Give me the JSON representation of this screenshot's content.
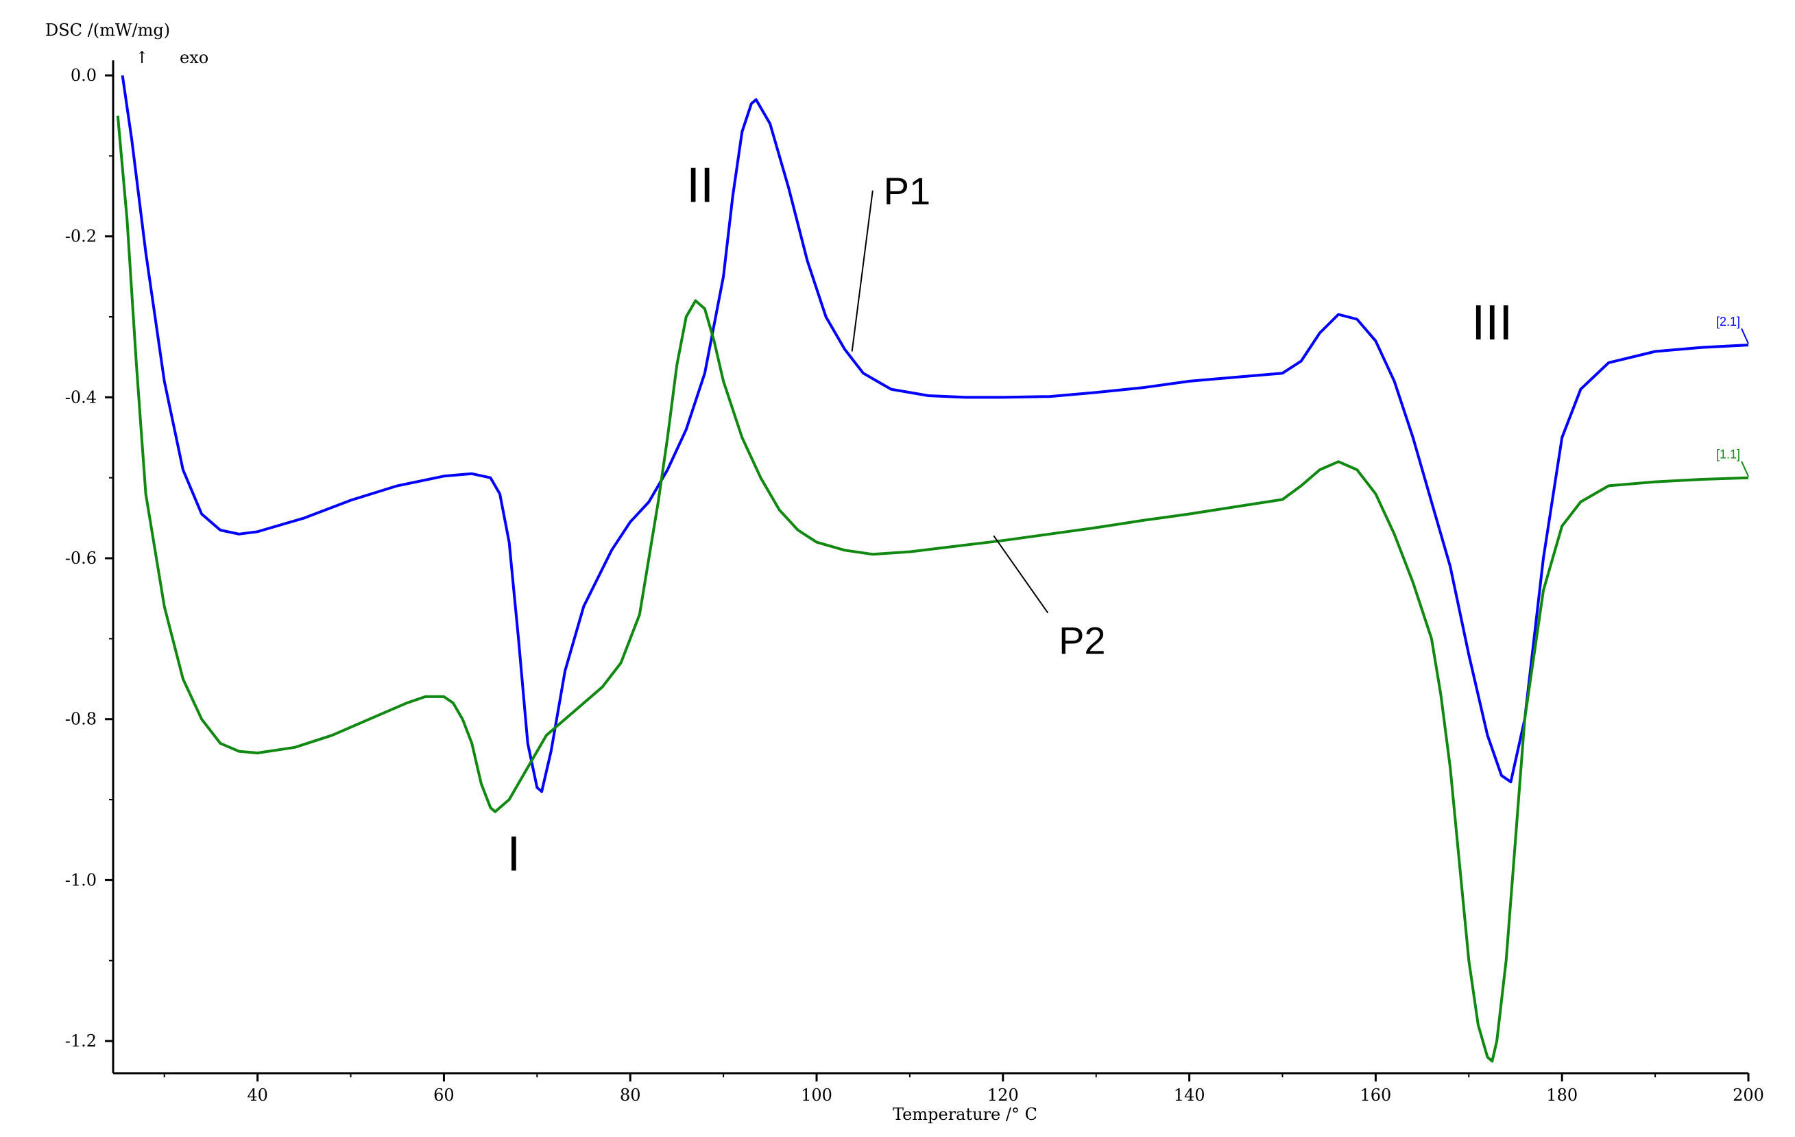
{
  "chart_data": {
    "type": "line",
    "title": "",
    "xlabel": "Temperature /° C",
    "ylabel": "DSC /(mW/mg)",
    "exo_label": "exo",
    "exo_arrow": "↑",
    "xlim": [
      24.5,
      200
    ],
    "ylim": [
      -1.24,
      0.0
    ],
    "x_ticks": [
      40,
      60,
      80,
      100,
      120,
      140,
      160,
      180,
      200
    ],
    "x_tick_labels": [
      "40",
      "60",
      "80",
      "100",
      "120",
      "140",
      "160",
      "180",
      "200"
    ],
    "y_ticks": [
      0.0,
      -0.2,
      -0.4,
      -0.6,
      -0.8,
      -1.0,
      -1.2
    ],
    "y_tick_labels": [
      "0.0",
      "-0.2",
      "-0.4",
      "-0.6",
      "-0.8",
      "-1.0",
      "-1.2"
    ],
    "grid": false,
    "legend": "none",
    "series": [
      {
        "name": "P1",
        "end_tag": "[2.1]",
        "color": "#0000ff",
        "points": [
          [
            25.5,
            0.0
          ],
          [
            26.5,
            -0.08
          ],
          [
            28,
            -0.22
          ],
          [
            30,
            -0.38
          ],
          [
            32,
            -0.49
          ],
          [
            34,
            -0.545
          ],
          [
            36,
            -0.565
          ],
          [
            38,
            -0.57
          ],
          [
            40,
            -0.567
          ],
          [
            45,
            -0.55
          ],
          [
            50,
            -0.528
          ],
          [
            55,
            -0.51
          ],
          [
            60,
            -0.498
          ],
          [
            63,
            -0.495
          ],
          [
            65,
            -0.5
          ],
          [
            66,
            -0.52
          ],
          [
            67,
            -0.58
          ],
          [
            68,
            -0.7
          ],
          [
            69,
            -0.83
          ],
          [
            70,
            -0.885
          ],
          [
            70.5,
            -0.89
          ],
          [
            71.5,
            -0.84
          ],
          [
            73,
            -0.74
          ],
          [
            75,
            -0.66
          ],
          [
            78,
            -0.59
          ],
          [
            80,
            -0.555
          ],
          [
            82,
            -0.53
          ],
          [
            84,
            -0.49
          ],
          [
            86,
            -0.44
          ],
          [
            88,
            -0.37
          ],
          [
            90,
            -0.25
          ],
          [
            91,
            -0.15
          ],
          [
            92,
            -0.07
          ],
          [
            93,
            -0.035
          ],
          [
            93.5,
            -0.03
          ],
          [
            95,
            -0.06
          ],
          [
            97,
            -0.14
          ],
          [
            99,
            -0.23
          ],
          [
            101,
            -0.3
          ],
          [
            103,
            -0.34
          ],
          [
            105,
            -0.37
          ],
          [
            108,
            -0.39
          ],
          [
            112,
            -0.398
          ],
          [
            116,
            -0.4
          ],
          [
            120,
            -0.4
          ],
          [
            125,
            -0.399
          ],
          [
            130,
            -0.394
          ],
          [
            135,
            -0.388
          ],
          [
            140,
            -0.38
          ],
          [
            145,
            -0.375
          ],
          [
            150,
            -0.37
          ],
          [
            152,
            -0.355
          ],
          [
            154,
            -0.32
          ],
          [
            156,
            -0.297
          ],
          [
            158,
            -0.303
          ],
          [
            160,
            -0.33
          ],
          [
            162,
            -0.38
          ],
          [
            164,
            -0.45
          ],
          [
            166,
            -0.53
          ],
          [
            168,
            -0.61
          ],
          [
            170,
            -0.72
          ],
          [
            172,
            -0.82
          ],
          [
            173.5,
            -0.87
          ],
          [
            174.5,
            -0.878
          ],
          [
            176,
            -0.8
          ],
          [
            178,
            -0.6
          ],
          [
            180,
            -0.45
          ],
          [
            182,
            -0.39
          ],
          [
            185,
            -0.357
          ],
          [
            190,
            -0.343
          ],
          [
            195,
            -0.338
          ],
          [
            200,
            -0.335
          ]
        ]
      },
      {
        "name": "P2",
        "end_tag": "[1.1]",
        "color": "#118811",
        "points": [
          [
            25,
            -0.05
          ],
          [
            26,
            -0.18
          ],
          [
            27,
            -0.36
          ],
          [
            28,
            -0.52
          ],
          [
            30,
            -0.66
          ],
          [
            32,
            -0.75
          ],
          [
            34,
            -0.8
          ],
          [
            36,
            -0.83
          ],
          [
            38,
            -0.84
          ],
          [
            40,
            -0.842
          ],
          [
            44,
            -0.835
          ],
          [
            48,
            -0.82
          ],
          [
            52,
            -0.8
          ],
          [
            56,
            -0.78
          ],
          [
            58,
            -0.772
          ],
          [
            60,
            -0.772
          ],
          [
            61,
            -0.78
          ],
          [
            62,
            -0.8
          ],
          [
            63,
            -0.83
          ],
          [
            64,
            -0.88
          ],
          [
            65,
            -0.91
          ],
          [
            65.5,
            -0.915
          ],
          [
            67,
            -0.9
          ],
          [
            69,
            -0.86
          ],
          [
            71,
            -0.82
          ],
          [
            74,
            -0.79
          ],
          [
            77,
            -0.76
          ],
          [
            79,
            -0.73
          ],
          [
            81,
            -0.67
          ],
          [
            82,
            -0.6
          ],
          [
            83,
            -0.53
          ],
          [
            84,
            -0.45
          ],
          [
            85,
            -0.36
          ],
          [
            86,
            -0.3
          ],
          [
            87,
            -0.28
          ],
          [
            88,
            -0.29
          ],
          [
            89,
            -0.33
          ],
          [
            90,
            -0.38
          ],
          [
            92,
            -0.45
          ],
          [
            94,
            -0.5
          ],
          [
            96,
            -0.54
          ],
          [
            98,
            -0.565
          ],
          [
            100,
            -0.58
          ],
          [
            103,
            -0.59
          ],
          [
            106,
            -0.595
          ],
          [
            110,
            -0.592
          ],
          [
            115,
            -0.585
          ],
          [
            120,
            -0.578
          ],
          [
            125,
            -0.57
          ],
          [
            130,
            -0.562
          ],
          [
            135,
            -0.553
          ],
          [
            140,
            -0.545
          ],
          [
            145,
            -0.536
          ],
          [
            150,
            -0.527
          ],
          [
            152,
            -0.51
          ],
          [
            154,
            -0.49
          ],
          [
            156,
            -0.48
          ],
          [
            158,
            -0.49
          ],
          [
            160,
            -0.52
          ],
          [
            162,
            -0.57
          ],
          [
            164,
            -0.63
          ],
          [
            166,
            -0.7
          ],
          [
            167,
            -0.77
          ],
          [
            168,
            -0.86
          ],
          [
            169,
            -0.98
          ],
          [
            170,
            -1.1
          ],
          [
            171,
            -1.18
          ],
          [
            172,
            -1.22
          ],
          [
            172.5,
            -1.225
          ],
          [
            173,
            -1.2
          ],
          [
            174,
            -1.1
          ],
          [
            175,
            -0.95
          ],
          [
            176,
            -0.8
          ],
          [
            178,
            -0.64
          ],
          [
            180,
            -0.56
          ],
          [
            182,
            -0.53
          ],
          [
            185,
            -0.51
          ],
          [
            190,
            -0.505
          ],
          [
            195,
            -0.502
          ],
          [
            200,
            -0.5
          ]
        ]
      }
    ],
    "annotations": [
      {
        "text": "P1",
        "x": 109.7,
        "y": -0.143,
        "arrow_to": [
          103.8,
          -0.343
        ]
      },
      {
        "text": "P2",
        "x": 128.5,
        "y": -0.702,
        "arrow_to": [
          119,
          -0.572
        ]
      },
      {
        "text": "I",
        "x": 67.5,
        "y": -0.967
      },
      {
        "text": "II",
        "x": 87.5,
        "y": -0.136
      },
      {
        "text": "III",
        "x": 172.5,
        "y": -0.307
      }
    ]
  }
}
